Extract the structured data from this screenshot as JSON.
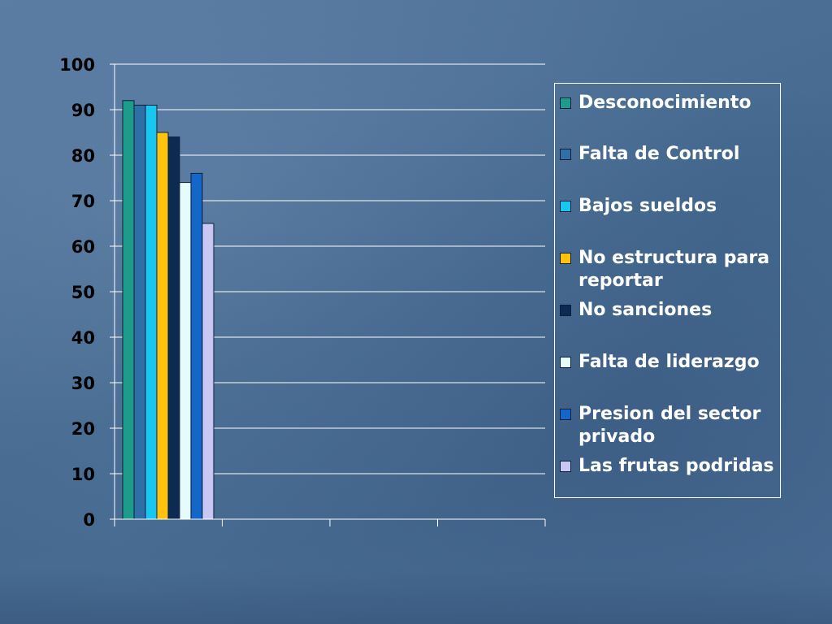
{
  "chart_data": {
    "type": "bar",
    "categories": [
      ""
    ],
    "series": [
      {
        "name": "Desconocimiento",
        "values": [
          92
        ],
        "color": "#1f9b8c"
      },
      {
        "name": "Falta de Control",
        "values": [
          91
        ],
        "color": "#2f6fa6"
      },
      {
        "name": "Bajos sueldos",
        "values": [
          91
        ],
        "color": "#19c6f0"
      },
      {
        "name": "No estructura para reportar",
        "values": [
          85
        ],
        "color": "#ffc20e"
      },
      {
        "name": "No sanciones",
        "values": [
          84
        ],
        "color": "#0d2a52"
      },
      {
        "name": "Falta de liderazgo",
        "values": [
          74
        ],
        "color": "#e6fcfc"
      },
      {
        "name": "Presion del sector privado",
        "values": [
          76
        ],
        "color": "#1466c8"
      },
      {
        "name": "Las frutas podridas",
        "values": [
          65
        ],
        "color": "#c9c8f4"
      }
    ],
    "ylim": [
      0,
      100
    ],
    "yticks": [
      "0",
      "10",
      "20",
      "30",
      "40",
      "50",
      "60",
      "70",
      "80",
      "90",
      "100"
    ],
    "xlabel": "",
    "ylabel": "",
    "grid": true,
    "legend_placement": "right"
  }
}
